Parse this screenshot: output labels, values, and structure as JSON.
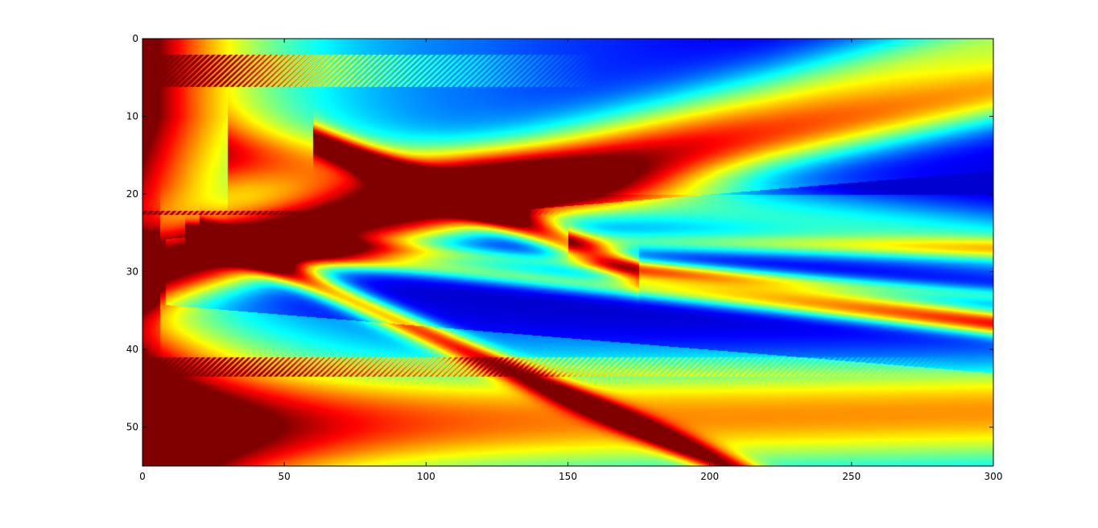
{
  "chart_data": {
    "type": "heatmap",
    "title": "",
    "xlabel": "",
    "ylabel": "",
    "xlim": [
      0,
      300
    ],
    "ylim": [
      0,
      55
    ],
    "y_reversed": true,
    "colormap": "jet",
    "x_ticks": [
      0,
      50,
      100,
      150,
      200,
      250,
      300
    ],
    "y_ticks": [
      0,
      10,
      20,
      30,
      40,
      50
    ],
    "grid": false,
    "legend": "none",
    "features": {
      "source_row": 30,
      "hot_decay_scale": 40,
      "ray_lines": [
        {
          "x": [
            0,
            300
          ],
          "y": [
            30,
            7
          ],
          "width": 3.0,
          "amp": 0.55
        },
        {
          "x": [
            0,
            300
          ],
          "y": [
            30,
            0
          ],
          "width": 3.5,
          "amp": 0.4
        },
        {
          "x": [
            15,
            300
          ],
          "y": [
            26,
            37
          ],
          "width": 1.0,
          "amp": 0.4
        },
        {
          "x": [
            15,
            300
          ],
          "y": [
            25,
            33
          ],
          "width": 0.8,
          "amp": 0.3
        },
        {
          "x": [
            20,
            250
          ],
          "y": [
            25,
            62
          ],
          "width": 1.2,
          "amp": 0.55
        },
        {
          "x": [
            60,
            175
          ],
          "y": [
            13,
            30
          ],
          "width": 1.4,
          "amp": 0.6
        },
        {
          "x": [
            175,
            300
          ],
          "y": [
            30,
            36
          ],
          "width": 1.2,
          "amp": 0.45
        },
        {
          "x": [
            150,
            300
          ],
          "y": [
            26,
            27
          ],
          "width": 1.0,
          "amp": 0.3
        }
      ],
      "broad_bands": [
        {
          "x": [
            30,
            300
          ],
          "y": [
            15,
            26
          ],
          "width": 3.0,
          "amp": 0.35
        },
        {
          "x": [
            0,
            300
          ],
          "y": [
            50,
            48
          ],
          "width": 5.0,
          "amp": 0.55
        }
      ],
      "interference_rows": [
        {
          "y0": 2.0,
          "y1": 6.2,
          "x_end": 160,
          "amp": 0.9
        },
        {
          "y0": 22.1,
          "y1": 22.6,
          "x_end": 160,
          "amp": 0.6
        },
        {
          "y0": 41.0,
          "y1": 43.5,
          "x_end": 290,
          "amp": 0.8
        }
      ]
    }
  }
}
